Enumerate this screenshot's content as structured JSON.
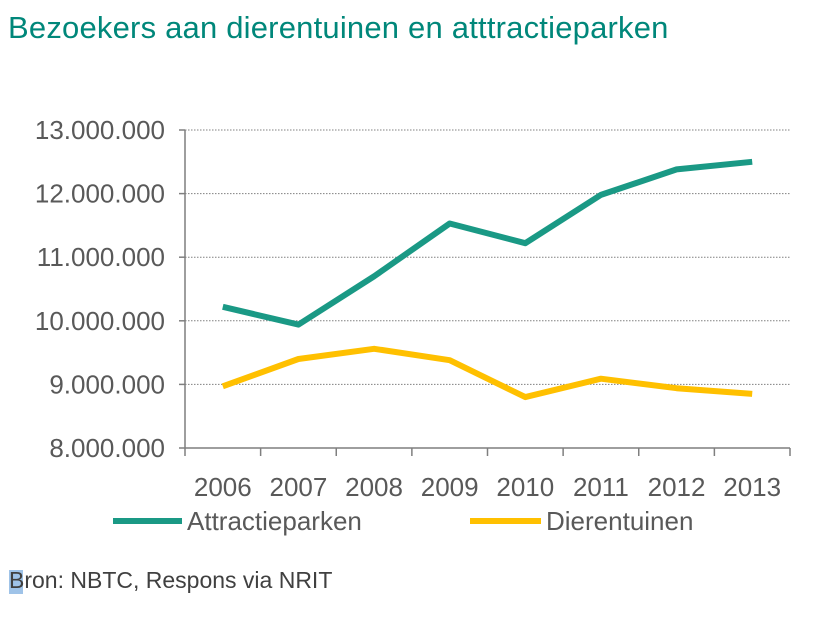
{
  "title": "Bezoekers aan dierentuinen en atttractieparken",
  "source": "Bron: NBTC, Respons via NRIT",
  "colors": {
    "title": "#00877a",
    "attractieparken": "#1a9985",
    "dierentuinen": "#ffc000",
    "axis_text": "#595959",
    "grid": "#808080"
  },
  "chart_data": {
    "type": "line",
    "title": "Bezoekers aan dierentuinen en atttractieparken",
    "xlabel": "",
    "ylabel": "",
    "categories": [
      "2006",
      "2007",
      "2008",
      "2009",
      "2010",
      "2011",
      "2012",
      "2013"
    ],
    "ylim": [
      8000000,
      13000000
    ],
    "yticks": [
      "8.000.000",
      "9.000.000",
      "10.000.000",
      "11.000.000",
      "12.000.000",
      "13.000.000"
    ],
    "ytick_values": [
      8000000,
      9000000,
      10000000,
      11000000,
      12000000,
      13000000
    ],
    "grid": true,
    "legend_position": "bottom",
    "series": [
      {
        "name": "Attractieparken",
        "color": "#1a9985",
        "values": [
          10220000,
          9940000,
          10700000,
          11530000,
          11220000,
          11980000,
          12380000,
          12500000
        ]
      },
      {
        "name": "Dierentuinen",
        "color": "#ffc000",
        "values": [
          8970000,
          9400000,
          9560000,
          9380000,
          8800000,
          9090000,
          8940000,
          8850000
        ]
      }
    ]
  }
}
